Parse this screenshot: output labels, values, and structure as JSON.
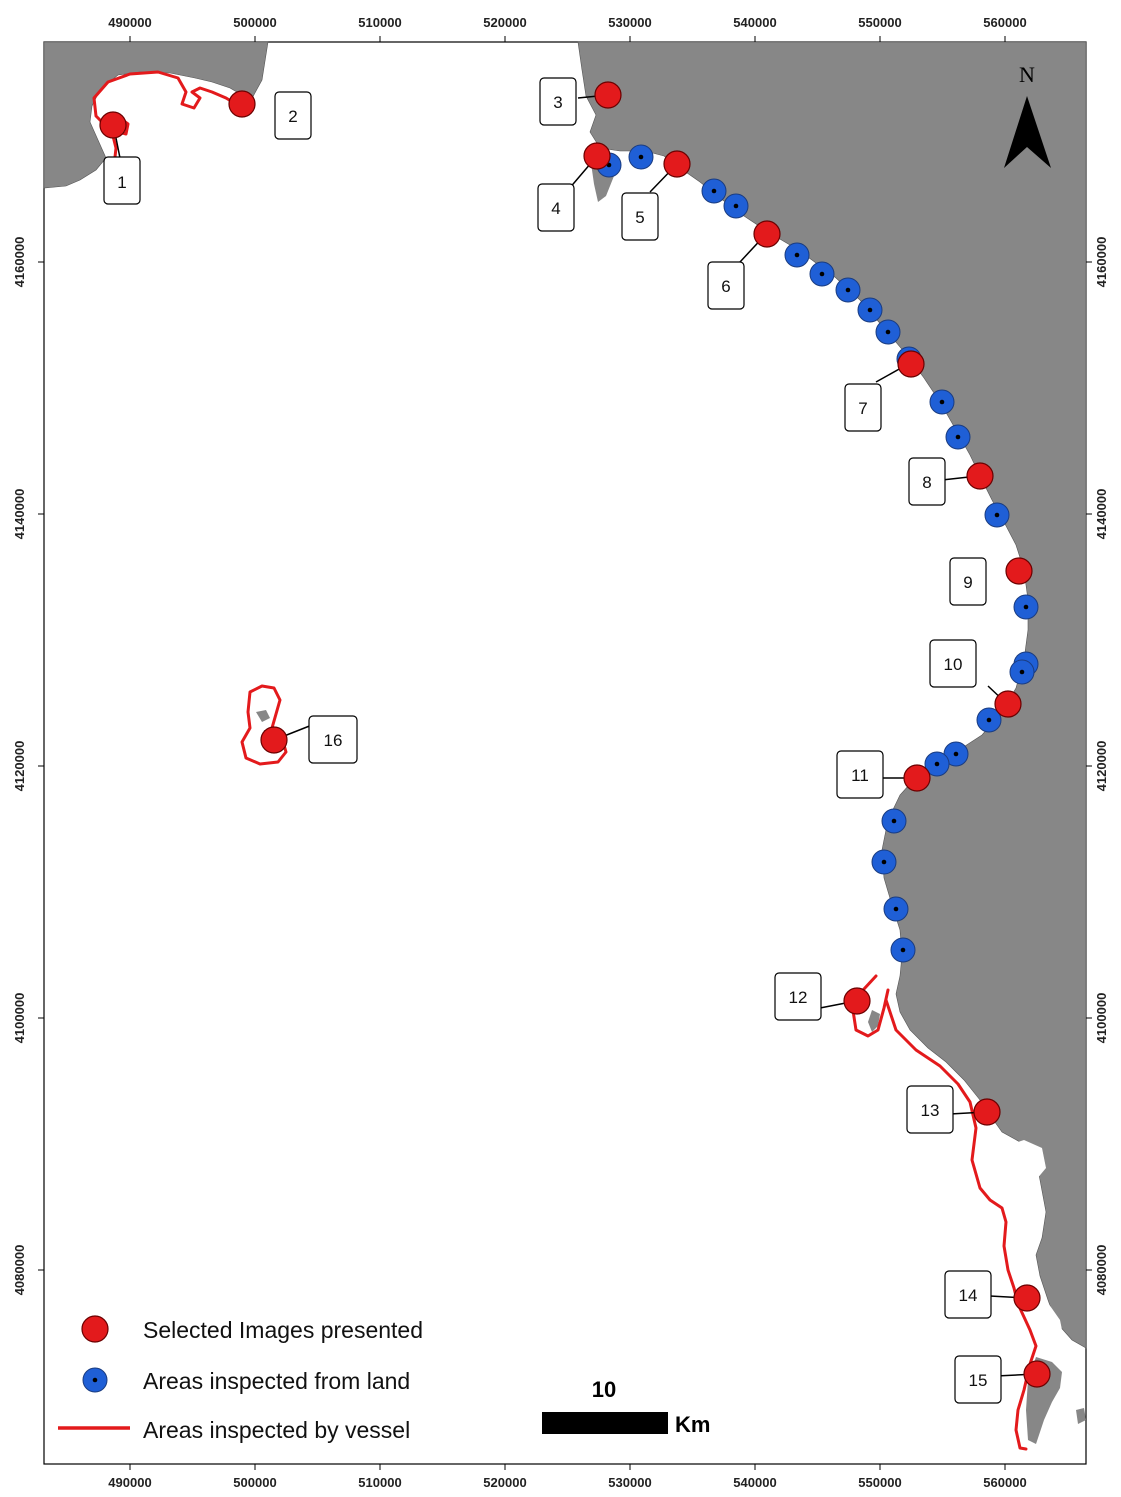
{
  "map": {
    "x_ticks": [
      "490000",
      "500000",
      "510000",
      "520000",
      "530000",
      "540000",
      "550000",
      "560000"
    ],
    "y_ticks": [
      "4160000",
      "4140000",
      "4120000",
      "4100000",
      "4080000"
    ],
    "north_label": "N",
    "scale_value": "10",
    "scale_unit": "Km",
    "colors": {
      "land": "#878787",
      "selected": "#e31a1c",
      "inspected_land": "#1f5fd6",
      "vessel": "#e31a1c"
    },
    "site_labels": [
      "1",
      "2",
      "3",
      "4",
      "5",
      "6",
      "7",
      "8",
      "9",
      "10",
      "11",
      "12",
      "13",
      "14",
      "15",
      "16"
    ]
  },
  "legend": {
    "items": [
      {
        "label": "Selected Images presented"
      },
      {
        "label": "Areas inspected from land"
      },
      {
        "label": "Areas inspected by vessel"
      }
    ]
  }
}
